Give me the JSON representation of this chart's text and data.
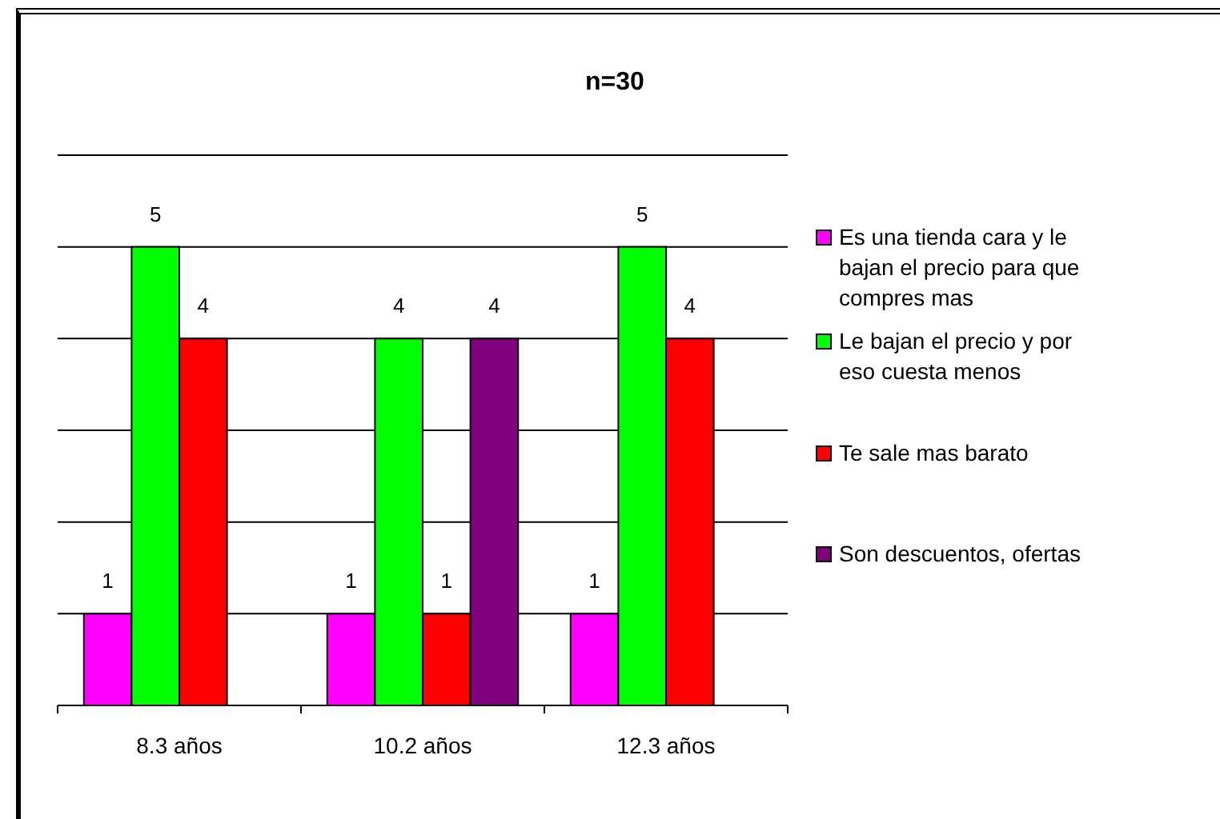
{
  "chart_data": {
    "type": "bar",
    "title": "n=30",
    "categories": [
      "8.3 años",
      "10.2 años",
      "12.3 años"
    ],
    "series": [
      {
        "name": "Es una tienda cara y le bajan el precio para que compres mas",
        "color": "#ff00ff",
        "values": [
          1,
          1,
          1
        ]
      },
      {
        "name": "Le bajan el precio y por eso cuesta menos",
        "color": "#00ff00",
        "values": [
          5,
          4,
          5
        ]
      },
      {
        "name": "Te sale mas barato",
        "color": "#ff0000",
        "values": [
          4,
          1,
          4
        ]
      },
      {
        "name": "Son descuentos, ofertas",
        "color": "#800080",
        "values": [
          null,
          4,
          null
        ]
      }
    ],
    "ylim": [
      0,
      6
    ],
    "yticks": [
      {
        "value": 1,
        "label": null
      },
      {
        "value": 2,
        "label": null
      },
      {
        "value": 3,
        "label": null
      },
      {
        "value": 4,
        "label": null
      },
      {
        "value": 5,
        "label": null
      },
      {
        "value": 6,
        "label": null
      }
    ],
    "tick_labels": "x",
    "grid": "y",
    "legend": "right",
    "data_labels": true
  }
}
